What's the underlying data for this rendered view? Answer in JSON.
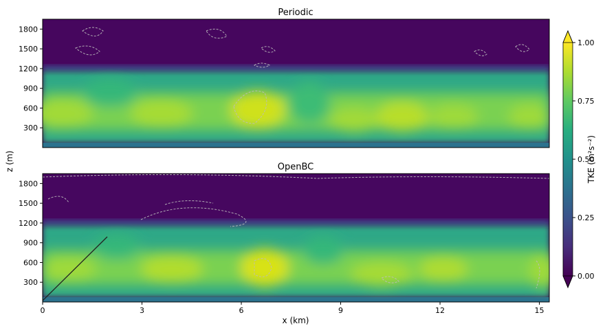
{
  "figure": {
    "ylabel_shared": "z (m)",
    "xlabel_shared": "x (km)"
  },
  "chart_data": [
    {
      "type": "heatmap",
      "title": "Periodic",
      "xlim": [
        0,
        15.3
      ],
      "ylim": [
        0,
        1950
      ],
      "yticks": [
        300,
        600,
        900,
        1200,
        1500,
        1800
      ],
      "xticks": [],
      "layers": {
        "boundary_layer_top_m": 1200,
        "tke_band_peaks": [
          {
            "x_km": 0.6,
            "tke": 0.86
          },
          {
            "x_km": 3.6,
            "tke": 0.88
          },
          {
            "x_km": 6.5,
            "tke": 0.97
          },
          {
            "x_km": 9.5,
            "tke": 0.84
          },
          {
            "x_km": 10.9,
            "tke": 0.92
          },
          {
            "x_km": 12.4,
            "tke": 0.85
          },
          {
            "x_km": 14.6,
            "tke": 0.84
          }
        ]
      }
    },
    {
      "type": "heatmap",
      "title": "OpenBC",
      "xlim": [
        0,
        15.3
      ],
      "ylim": [
        0,
        1950
      ],
      "yticks": [
        300,
        600,
        900,
        1200,
        1500,
        1800
      ],
      "xticks": [
        0,
        3,
        6,
        9,
        12,
        15
      ],
      "layers": {
        "boundary_layer_top_m": 1200,
        "tke_band_peaks": [
          {
            "x_km": 0.7,
            "tke": 0.84
          },
          {
            "x_km": 4.1,
            "tke": 0.9
          },
          {
            "x_km": 6.7,
            "tke": 0.97
          },
          {
            "x_km": 10.2,
            "tke": 0.86
          },
          {
            "x_km": 12.1,
            "tke": 0.88
          },
          {
            "x_km": 15.1,
            "tke": 0.8
          }
        ]
      }
    }
  ],
  "colorbar": {
    "label": "TKE (m²s⁻²)",
    "ticks": [
      0.0,
      0.25,
      0.5,
      0.75,
      1.0
    ],
    "tick_labels": [
      "0.00",
      "0.25",
      "0.50",
      "0.75",
      "1.00"
    ],
    "range": [
      0,
      1
    ],
    "extend": "both",
    "colormap": "viridis",
    "colors": [
      "#440154",
      "#472d7b",
      "#3b528b",
      "#2c728e",
      "#21918c",
      "#28ae80",
      "#5ec962",
      "#addc30",
      "#fde725"
    ]
  }
}
